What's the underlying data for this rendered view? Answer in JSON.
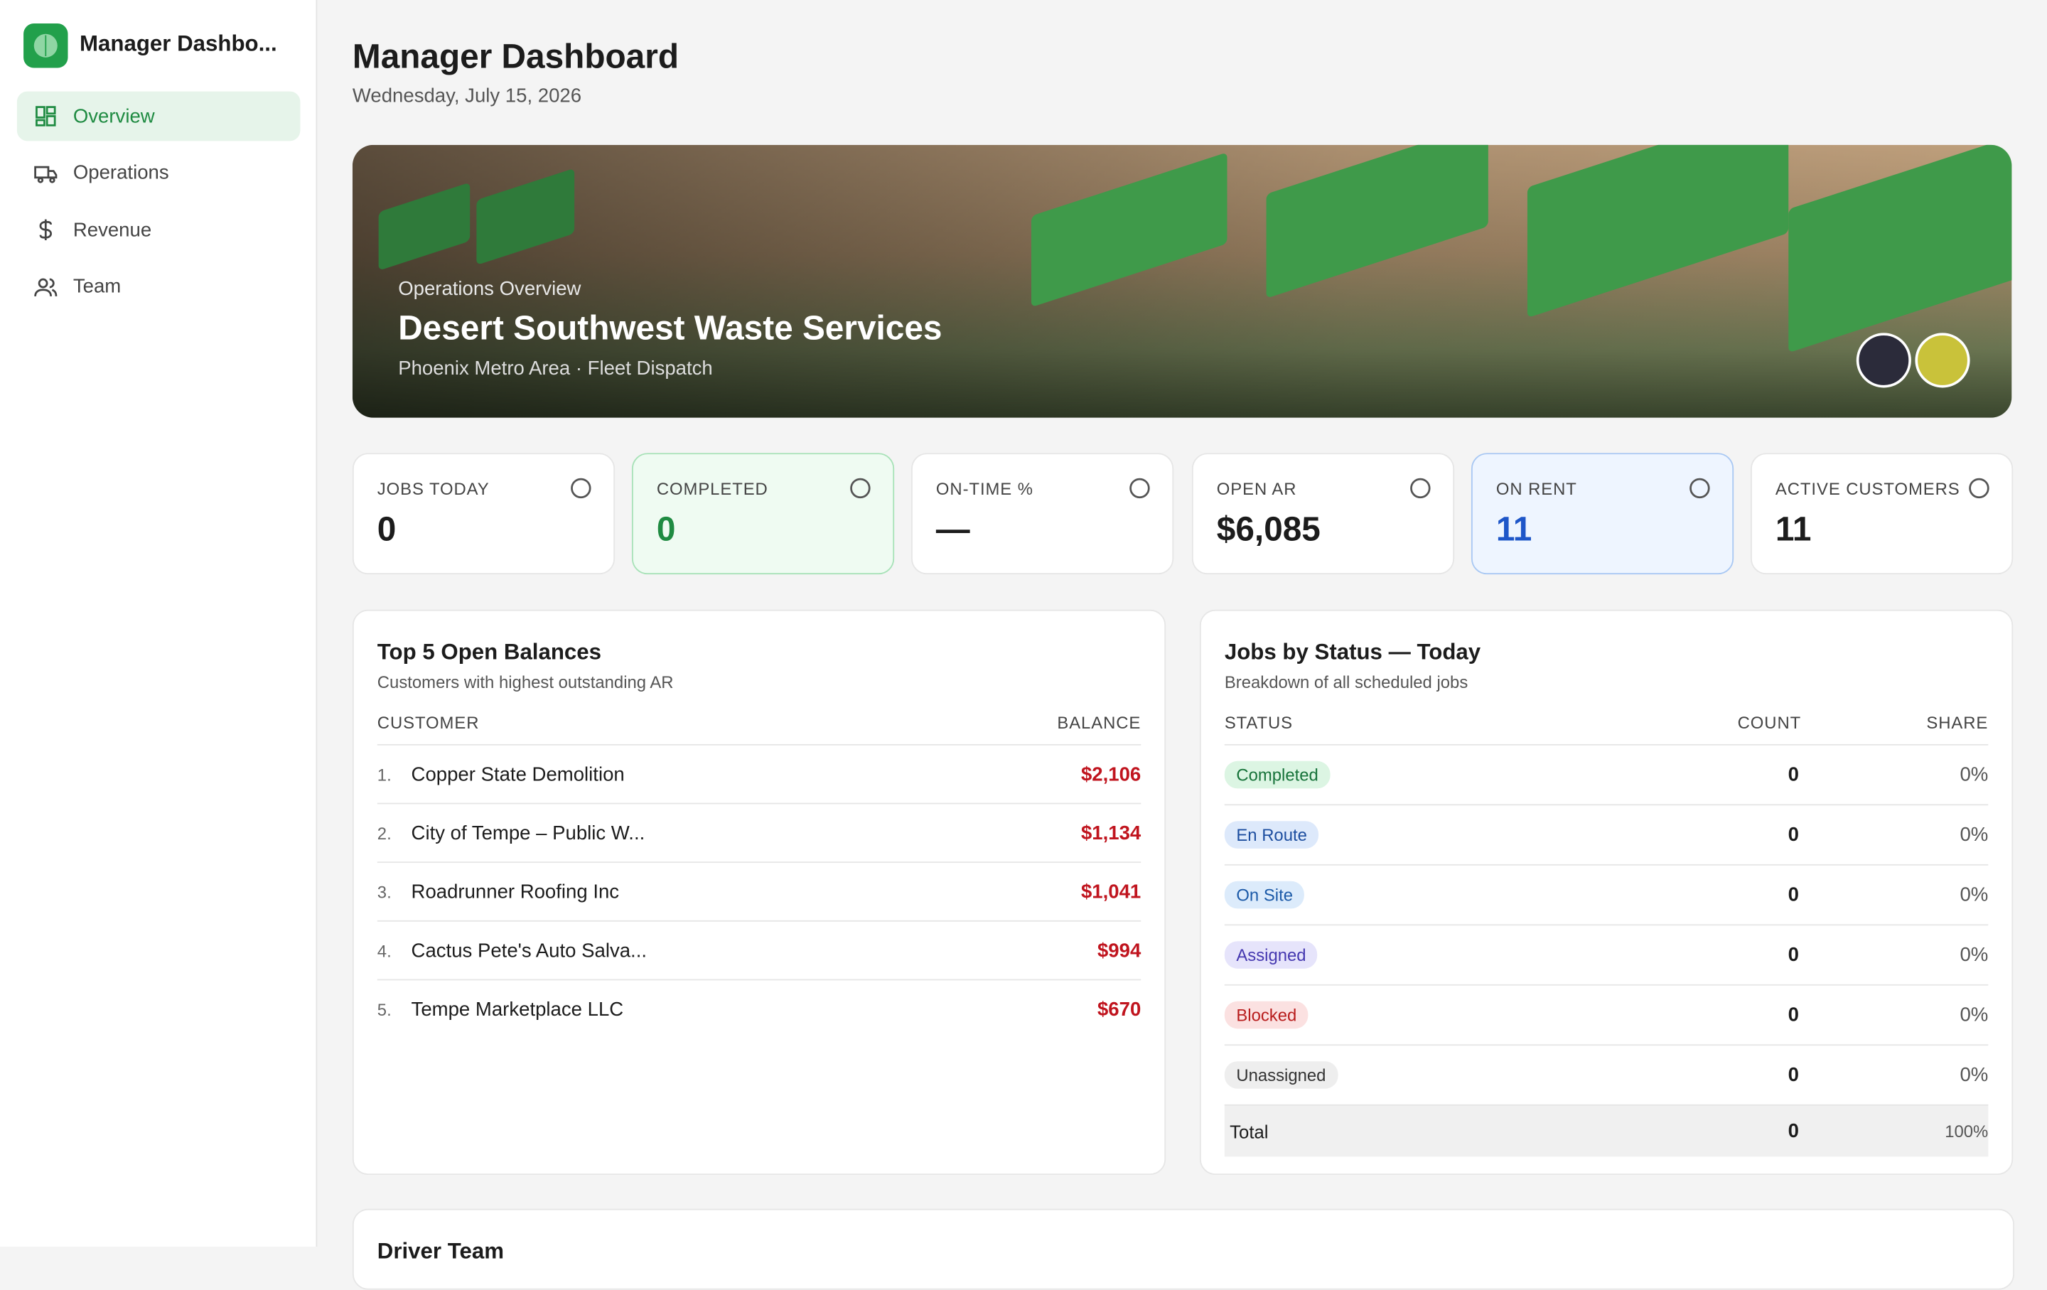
{
  "sidebar": {
    "app_name": "Manager Dashbo...",
    "nav": [
      "Overview",
      "Operations",
      "Revenue",
      "Team"
    ]
  },
  "header": {
    "title": "Manager Dashboard",
    "date": "Wednesday, July 15, 2026"
  },
  "hero": {
    "eyebrow": "Operations Overview",
    "title": "Desert Southwest Waste Services",
    "subtitle": "Phoenix Metro Area · Fleet Dispatch"
  },
  "kpis": [
    {
      "label": "JOBS TODAY",
      "value": 0
    },
    {
      "label": "COMPLETED",
      "value": 0
    },
    {
      "label": "ON-TIME %",
      "value": "—"
    },
    {
      "label": "OPEN AR",
      "value": "$6,085"
    },
    {
      "label": "ON RENT",
      "value": 11
    },
    {
      "label": "ACTIVE CUSTOMERS",
      "value": 11
    }
  ],
  "balances": {
    "title": "Top 5 Open Balances",
    "subtitle": "Customers with highest outstanding AR",
    "columns": [
      "CUSTOMER",
      "BALANCE"
    ],
    "rows": [
      [
        "1.",
        "Copper State Demolition",
        "$2,106"
      ],
      [
        "2.",
        "City of Tempe – Public W...",
        "$1,134"
      ],
      [
        "3.",
        "Roadrunner Roofing Inc",
        "$1,041"
      ],
      [
        "4.",
        "Cactus Pete's Auto Salva...",
        "$994"
      ],
      [
        "5.",
        "Tempe Marketplace LLC",
        "$670"
      ]
    ]
  },
  "jobs": {
    "title": "Jobs by Status — Today",
    "subtitle": "Breakdown of all scheduled jobs",
    "columns": [
      "STATUS",
      "COUNT",
      "SHARE"
    ],
    "rows": [
      [
        "Completed",
        0,
        "0%"
      ],
      [
        "En Route",
        0,
        "0%"
      ],
      [
        "On Site",
        0,
        "0%"
      ],
      [
        "Assigned",
        0,
        "0%"
      ],
      [
        "Blocked",
        0,
        "0%"
      ],
      [
        "Unassigned",
        0,
        "0%"
      ]
    ],
    "total": [
      "Total",
      0,
      "100%"
    ]
  },
  "driver_team": {
    "title": "Driver Team"
  }
}
